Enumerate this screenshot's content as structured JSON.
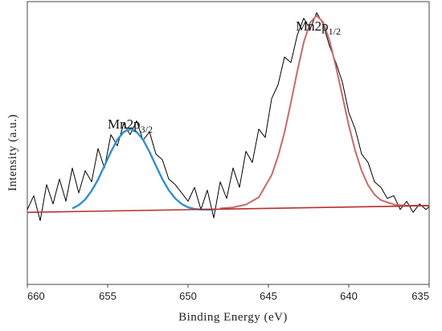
{
  "chart_data": {
    "type": "line",
    "xlabel": "Binding  Energy  (eV)",
    "ylabel": "Intensity  (a.u.)",
    "xlim": [
      660,
      635
    ],
    "x_reversed": true,
    "ylim": [
      -1.3,
      3.8
    ],
    "y_ticks_shown": false,
    "x_ticks": [
      660,
      655,
      650,
      645,
      640,
      635
    ],
    "x_tick_labels": [
      "660",
      "655",
      "650",
      "645",
      "640",
      "635"
    ],
    "grid": false,
    "legend": "none",
    "annotations": [
      {
        "text": "Mn2p",
        "sub": "3/2",
        "x": 653.6
      },
      {
        "text": "Mn2p",
        "sub": "1/2",
        "x": 641.9
      }
    ],
    "series": [
      {
        "role": "raw",
        "color": "#000000",
        "x": [
          660,
          659.6,
          659.2,
          658.8,
          658.4,
          658,
          657.6,
          657.2,
          656.8,
          656.4,
          656,
          655.6,
          655.2,
          654.8,
          654.4,
          654,
          653.6,
          653.2,
          652.8,
          652.4,
          652,
          651.6,
          651.2,
          650.8,
          650.4,
          650,
          649.6,
          649.2,
          648.8,
          648.4,
          648,
          647.6,
          647.2,
          646.8,
          646.4,
          646,
          645.6,
          645.2,
          644.8,
          644.4,
          644,
          643.6,
          643.2,
          642.8,
          642.4,
          642,
          641.6,
          641.2,
          640.8,
          640.4,
          640,
          639.6,
          639.2,
          638.8,
          638.4,
          638,
          637.6,
          637.2,
          636.8,
          636.4,
          636,
          635.6,
          635.2,
          635
        ],
        "y": [
          0.05,
          0.3,
          -0.15,
          0.5,
          0.15,
          0.6,
          0.2,
          0.8,
          0.35,
          0.75,
          0.55,
          1.15,
          0.8,
          1.4,
          1.2,
          1.6,
          1.4,
          1.65,
          1.3,
          1.45,
          1.05,
          0.95,
          0.6,
          0.5,
          0.35,
          0.2,
          0.45,
          0.05,
          0.4,
          -0.1,
          0.55,
          0.25,
          0.8,
          0.45,
          1.1,
          0.9,
          1.5,
          1.35,
          2.05,
          2.3,
          2.8,
          2.7,
          3.2,
          3.5,
          3.3,
          3.6,
          3.4,
          3.0,
          2.7,
          2.35,
          1.8,
          1.5,
          1.05,
          0.9,
          0.55,
          0.45,
          0.25,
          0.3,
          0.05,
          0.2,
          0.0,
          0.15,
          0.05,
          0.1
        ]
      },
      {
        "role": "fit-mn2p3/2",
        "color": "#2e8fd0",
        "x": [
          657.2,
          656.8,
          656.4,
          656,
          655.6,
          655.2,
          654.8,
          654.4,
          654,
          653.6,
          653.2,
          652.8,
          652.4,
          652,
          651.6,
          651.2,
          650.8,
          650.4,
          650,
          649.6,
          649.2,
          648.8,
          648.4
        ],
        "y": [
          0.07,
          0.13,
          0.23,
          0.39,
          0.59,
          0.84,
          1.09,
          1.31,
          1.45,
          1.5,
          1.45,
          1.31,
          1.09,
          0.84,
          0.6,
          0.4,
          0.25,
          0.15,
          0.09,
          0.06,
          0.05,
          0.05,
          0.05
        ]
      },
      {
        "role": "fit-mn2p1/2",
        "color": "#c76a6a",
        "x": [
          648,
          647.2,
          646.4,
          645.6,
          644.8,
          644.4,
          644,
          643.6,
          643.2,
          642.8,
          642.4,
          642,
          641.6,
          641.2,
          640.8,
          640.4,
          640,
          639.6,
          639.2,
          638.8,
          638.4,
          638,
          637.2,
          636.4,
          635.6,
          635
        ],
        "y": [
          0.07,
          0.09,
          0.14,
          0.27,
          0.67,
          1.01,
          1.44,
          1.98,
          2.55,
          3.07,
          3.42,
          3.55,
          3.43,
          3.1,
          2.63,
          2.1,
          1.57,
          1.11,
          0.75,
          0.49,
          0.32,
          0.22,
          0.14,
          0.12,
          0.12,
          0.12
        ]
      },
      {
        "role": "baseline",
        "color": "#b5302d",
        "x": [
          660,
          635
        ],
        "y": [
          0.0,
          0.12
        ]
      }
    ]
  }
}
